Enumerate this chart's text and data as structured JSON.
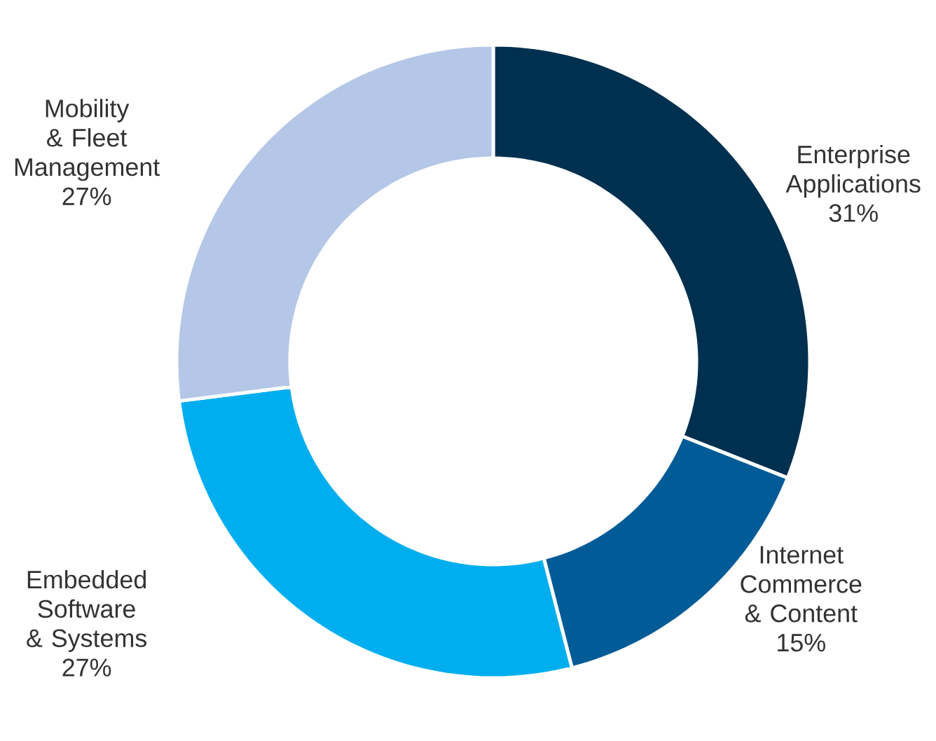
{
  "chart_data": {
    "type": "donut",
    "categories": [
      "Enterprise Applications",
      "Internet Commerce & Content",
      "Embedded Software & Systems",
      "Mobility & Fleet Management"
    ],
    "values": [
      31,
      15,
      27,
      27
    ],
    "value_labels": [
      "31%",
      "15%",
      "27%",
      "27%"
    ],
    "colors": [
      "#00304f",
      "#005b96",
      "#00aeef",
      "#b4c7e7"
    ]
  }
}
